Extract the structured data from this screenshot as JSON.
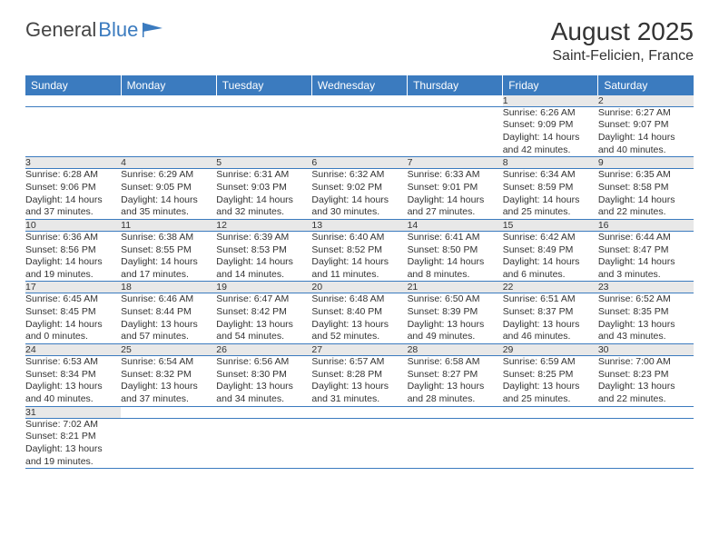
{
  "logo": {
    "text1": "General",
    "text2": "Blue"
  },
  "title": "August 2025",
  "location": "Saint-Felicien, France",
  "colors": {
    "brand_blue": "#3b7bbf",
    "header_text": "#ffffff",
    "daynum_bg": "#e8e8e8",
    "text": "#333333",
    "logo_gray": "#444444"
  },
  "day_headers": [
    "Sunday",
    "Monday",
    "Tuesday",
    "Wednesday",
    "Thursday",
    "Friday",
    "Saturday"
  ],
  "weeks": [
    [
      null,
      null,
      null,
      null,
      null,
      {
        "n": "1",
        "sr": "Sunrise: 6:26 AM",
        "ss": "Sunset: 9:09 PM",
        "d1": "Daylight: 14 hours",
        "d2": "and 42 minutes."
      },
      {
        "n": "2",
        "sr": "Sunrise: 6:27 AM",
        "ss": "Sunset: 9:07 PM",
        "d1": "Daylight: 14 hours",
        "d2": "and 40 minutes."
      }
    ],
    [
      {
        "n": "3",
        "sr": "Sunrise: 6:28 AM",
        "ss": "Sunset: 9:06 PM",
        "d1": "Daylight: 14 hours",
        "d2": "and 37 minutes."
      },
      {
        "n": "4",
        "sr": "Sunrise: 6:29 AM",
        "ss": "Sunset: 9:05 PM",
        "d1": "Daylight: 14 hours",
        "d2": "and 35 minutes."
      },
      {
        "n": "5",
        "sr": "Sunrise: 6:31 AM",
        "ss": "Sunset: 9:03 PM",
        "d1": "Daylight: 14 hours",
        "d2": "and 32 minutes."
      },
      {
        "n": "6",
        "sr": "Sunrise: 6:32 AM",
        "ss": "Sunset: 9:02 PM",
        "d1": "Daylight: 14 hours",
        "d2": "and 30 minutes."
      },
      {
        "n": "7",
        "sr": "Sunrise: 6:33 AM",
        "ss": "Sunset: 9:01 PM",
        "d1": "Daylight: 14 hours",
        "d2": "and 27 minutes."
      },
      {
        "n": "8",
        "sr": "Sunrise: 6:34 AM",
        "ss": "Sunset: 8:59 PM",
        "d1": "Daylight: 14 hours",
        "d2": "and 25 minutes."
      },
      {
        "n": "9",
        "sr": "Sunrise: 6:35 AM",
        "ss": "Sunset: 8:58 PM",
        "d1": "Daylight: 14 hours",
        "d2": "and 22 minutes."
      }
    ],
    [
      {
        "n": "10",
        "sr": "Sunrise: 6:36 AM",
        "ss": "Sunset: 8:56 PM",
        "d1": "Daylight: 14 hours",
        "d2": "and 19 minutes."
      },
      {
        "n": "11",
        "sr": "Sunrise: 6:38 AM",
        "ss": "Sunset: 8:55 PM",
        "d1": "Daylight: 14 hours",
        "d2": "and 17 minutes."
      },
      {
        "n": "12",
        "sr": "Sunrise: 6:39 AM",
        "ss": "Sunset: 8:53 PM",
        "d1": "Daylight: 14 hours",
        "d2": "and 14 minutes."
      },
      {
        "n": "13",
        "sr": "Sunrise: 6:40 AM",
        "ss": "Sunset: 8:52 PM",
        "d1": "Daylight: 14 hours",
        "d2": "and 11 minutes."
      },
      {
        "n": "14",
        "sr": "Sunrise: 6:41 AM",
        "ss": "Sunset: 8:50 PM",
        "d1": "Daylight: 14 hours",
        "d2": "and 8 minutes."
      },
      {
        "n": "15",
        "sr": "Sunrise: 6:42 AM",
        "ss": "Sunset: 8:49 PM",
        "d1": "Daylight: 14 hours",
        "d2": "and 6 minutes."
      },
      {
        "n": "16",
        "sr": "Sunrise: 6:44 AM",
        "ss": "Sunset: 8:47 PM",
        "d1": "Daylight: 14 hours",
        "d2": "and 3 minutes."
      }
    ],
    [
      {
        "n": "17",
        "sr": "Sunrise: 6:45 AM",
        "ss": "Sunset: 8:45 PM",
        "d1": "Daylight: 14 hours",
        "d2": "and 0 minutes."
      },
      {
        "n": "18",
        "sr": "Sunrise: 6:46 AM",
        "ss": "Sunset: 8:44 PM",
        "d1": "Daylight: 13 hours",
        "d2": "and 57 minutes."
      },
      {
        "n": "19",
        "sr": "Sunrise: 6:47 AM",
        "ss": "Sunset: 8:42 PM",
        "d1": "Daylight: 13 hours",
        "d2": "and 54 minutes."
      },
      {
        "n": "20",
        "sr": "Sunrise: 6:48 AM",
        "ss": "Sunset: 8:40 PM",
        "d1": "Daylight: 13 hours",
        "d2": "and 52 minutes."
      },
      {
        "n": "21",
        "sr": "Sunrise: 6:50 AM",
        "ss": "Sunset: 8:39 PM",
        "d1": "Daylight: 13 hours",
        "d2": "and 49 minutes."
      },
      {
        "n": "22",
        "sr": "Sunrise: 6:51 AM",
        "ss": "Sunset: 8:37 PM",
        "d1": "Daylight: 13 hours",
        "d2": "and 46 minutes."
      },
      {
        "n": "23",
        "sr": "Sunrise: 6:52 AM",
        "ss": "Sunset: 8:35 PM",
        "d1": "Daylight: 13 hours",
        "d2": "and 43 minutes."
      }
    ],
    [
      {
        "n": "24",
        "sr": "Sunrise: 6:53 AM",
        "ss": "Sunset: 8:34 PM",
        "d1": "Daylight: 13 hours",
        "d2": "and 40 minutes."
      },
      {
        "n": "25",
        "sr": "Sunrise: 6:54 AM",
        "ss": "Sunset: 8:32 PM",
        "d1": "Daylight: 13 hours",
        "d2": "and 37 minutes."
      },
      {
        "n": "26",
        "sr": "Sunrise: 6:56 AM",
        "ss": "Sunset: 8:30 PM",
        "d1": "Daylight: 13 hours",
        "d2": "and 34 minutes."
      },
      {
        "n": "27",
        "sr": "Sunrise: 6:57 AM",
        "ss": "Sunset: 8:28 PM",
        "d1": "Daylight: 13 hours",
        "d2": "and 31 minutes."
      },
      {
        "n": "28",
        "sr": "Sunrise: 6:58 AM",
        "ss": "Sunset: 8:27 PM",
        "d1": "Daylight: 13 hours",
        "d2": "and 28 minutes."
      },
      {
        "n": "29",
        "sr": "Sunrise: 6:59 AM",
        "ss": "Sunset: 8:25 PM",
        "d1": "Daylight: 13 hours",
        "d2": "and 25 minutes."
      },
      {
        "n": "30",
        "sr": "Sunrise: 7:00 AM",
        "ss": "Sunset: 8:23 PM",
        "d1": "Daylight: 13 hours",
        "d2": "and 22 minutes."
      }
    ],
    [
      {
        "n": "31",
        "sr": "Sunrise: 7:02 AM",
        "ss": "Sunset: 8:21 PM",
        "d1": "Daylight: 13 hours",
        "d2": "and 19 minutes."
      },
      null,
      null,
      null,
      null,
      null,
      null
    ]
  ]
}
